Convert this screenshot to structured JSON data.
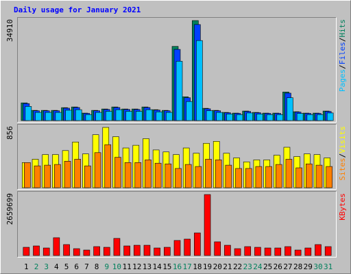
{
  "chart_data": [
    {
      "type": "bar",
      "title": "Daily usage for January 2021",
      "ylim": [
        0,
        34910
      ],
      "yticks": [
        34910
      ],
      "legend_separator": "/",
      "series": [
        {
          "name": "Hits",
          "color": "#00805c",
          "values": [
            6175,
            3560,
            3560,
            3560,
            4510,
            4750,
            2610,
            3560,
            4040,
            4750,
            4040,
            4040,
            4750,
            3800,
            3560,
            25890,
            8310,
            34910,
            4275,
            3560,
            2850,
            2610,
            3325,
            2850,
            2610,
            2610,
            9975,
            3090,
            2610,
            2610,
            3325
          ]
        },
        {
          "name": "Files",
          "color": "#0040ff",
          "values": [
            5930,
            3420,
            3420,
            3420,
            4330,
            4560,
            2505,
            3420,
            3880,
            4560,
            3880,
            3880,
            4560,
            3650,
            3420,
            24850,
            7980,
            33510,
            4100,
            3420,
            2735,
            2505,
            3190,
            2735,
            2505,
            2505,
            9575,
            2965,
            2505,
            2505,
            3190
          ]
        },
        {
          "name": "Pages",
          "color": "#00c0ff",
          "values": [
            4940,
            2850,
            2850,
            2850,
            3610,
            3800,
            2090,
            2850,
            3230,
            3800,
            3230,
            3230,
            3800,
            3040,
            2850,
            20710,
            6650,
            27930,
            3420,
            2850,
            2280,
            2090,
            2660,
            2280,
            2090,
            2090,
            7980,
            2470,
            2090,
            2090,
            2660
          ]
        }
      ]
    },
    {
      "type": "bar",
      "ylim": [
        0,
        856
      ],
      "yticks": [
        856
      ],
      "legend_separator": "/",
      "series": [
        {
          "name": "Visits",
          "color": "#ffff00",
          "values": [
            357,
            404,
            470,
            470,
            527,
            649,
            480,
            752,
            856,
            724,
            564,
            602,
            696,
            536,
            508,
            470,
            564,
            489,
            630,
            658,
            489,
            423,
            367,
            395,
            395,
            461,
            574,
            442,
            480,
            470,
            423
          ]
        },
        {
          "name": "Sites",
          "color": "#ff8000",
          "values": [
            357,
            310,
            320,
            330,
            376,
            404,
            310,
            498,
            611,
            432,
            357,
            357,
            395,
            348,
            338,
            273,
            330,
            301,
            404,
            395,
            320,
            273,
            273,
            301,
            301,
            330,
            404,
            282,
            338,
            320,
            301
          ]
        }
      ]
    },
    {
      "type": "bar",
      "ylim": [
        0,
        2659699
      ],
      "yticks": [
        2659699
      ],
      "legend_separator": "/",
      "categories": [
        "1",
        "2",
        "3",
        "4",
        "5",
        "6",
        "7",
        "8",
        "9",
        "10",
        "11",
        "12",
        "13",
        "14",
        "15",
        "16",
        "17",
        "18",
        "19",
        "20",
        "21",
        "22",
        "23",
        "24",
        "25",
        "26",
        "27",
        "28",
        "29",
        "30",
        "31"
      ],
      "category_colors": [
        "#000000",
        "#00805c",
        "#00805c",
        "#000000",
        "#000000",
        "#000000",
        "#000000",
        "#000000",
        "#00805c",
        "#00805c",
        "#000000",
        "#000000",
        "#000000",
        "#000000",
        "#000000",
        "#00805c",
        "#00805c",
        "#000000",
        "#000000",
        "#000000",
        "#000000",
        "#000000",
        "#00805c",
        "#00805c",
        "#000000",
        "#000000",
        "#000000",
        "#000000",
        "#000000",
        "#00805c",
        "#00805c"
      ],
      "series": [
        {
          "name": "KBytes",
          "color": "#ff0000",
          "values": [
            358600,
            418000,
            328700,
            777000,
            478000,
            298800,
            239000,
            388500,
            358600,
            747000,
            418000,
            448000,
            448000,
            328700,
            358600,
            657000,
            717000,
            986000,
            2659699,
            598000,
            448000,
            298800,
            388500,
            358600,
            328700,
            328700,
            388500,
            239000,
            328700,
            478000,
            388500
          ]
        }
      ]
    }
  ]
}
